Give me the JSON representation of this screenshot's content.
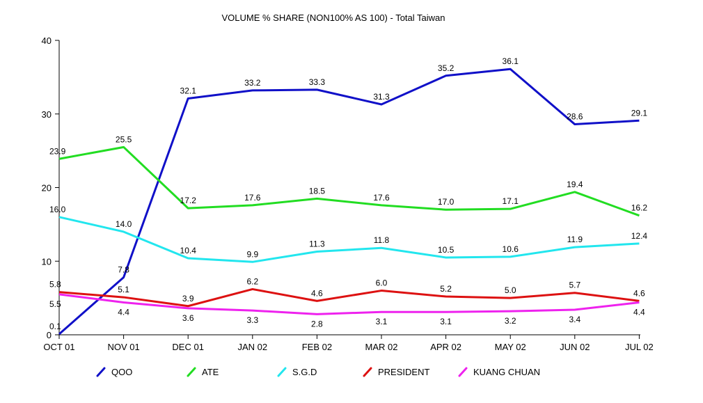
{
  "chart_data": {
    "type": "line",
    "title": "VOLUME % SHARE (NON100% AS 100) - Total Taiwan",
    "xlabel": "",
    "ylabel": "",
    "ylim": [
      0,
      40
    ],
    "yticks": [
      "0",
      "10",
      "20",
      "30",
      "40"
    ],
    "categories": [
      "OCT 01",
      "NOV 01",
      "DEC 01",
      "JAN 02",
      "FEB 02",
      "MAR 02",
      "APR 02",
      "MAY 02",
      "JUN 02",
      "JUL 02"
    ],
    "grid": false,
    "legend_position": "bottom",
    "series": [
      {
        "name": "QOO",
        "color": "#1010c8",
        "values": [
          0.1,
          7.8,
          32.1,
          33.2,
          33.3,
          31.3,
          35.2,
          36.1,
          28.6,
          29.1
        ],
        "labels": [
          "0.1",
          "7.8",
          "32.1",
          "33.2",
          "33.3",
          "31.3",
          "35.2",
          "36.1",
          "28.6",
          "29.1"
        ]
      },
      {
        "name": "ATE",
        "color": "#22dd22",
        "values": [
          23.9,
          25.5,
          17.2,
          17.6,
          18.5,
          17.6,
          17.0,
          17.1,
          19.4,
          16.2
        ],
        "labels": [
          "23.9",
          "25.5",
          "17.2",
          "17.6",
          "18.5",
          "17.6",
          "17.0",
          "17.1",
          "19.4",
          "16.2"
        ]
      },
      {
        "name": "S.G.D",
        "color": "#22e6ee",
        "values": [
          16.0,
          14.0,
          10.4,
          9.9,
          11.3,
          11.8,
          10.5,
          10.6,
          11.9,
          12.4
        ],
        "labels": [
          "16.0",
          "14.0",
          "10.4",
          "9.9",
          "11.3",
          "11.8",
          "10.5",
          "10.6",
          "11.9",
          "12.4"
        ]
      },
      {
        "name": "PRESIDENT",
        "color": "#dd1111",
        "values": [
          5.8,
          5.1,
          3.9,
          6.2,
          4.6,
          6.0,
          5.2,
          5.0,
          5.7,
          4.6
        ],
        "labels": [
          "5.8",
          "5.1",
          "3.9",
          "6.2",
          "4.6",
          "6.0",
          "5.2",
          "5.0",
          "5.7",
          "4.6"
        ]
      },
      {
        "name": "KUANG CHUAN",
        "color": "#ee22ee",
        "values": [
          5.5,
          4.4,
          3.6,
          3.3,
          2.8,
          3.1,
          3.1,
          3.2,
          3.4,
          4.4
        ],
        "labels": [
          "5.5",
          "4.4",
          "3.6",
          "3.3",
          "2.8",
          "3.1",
          "3.1",
          "3.2",
          "3.4",
          "4.4"
        ]
      }
    ]
  }
}
